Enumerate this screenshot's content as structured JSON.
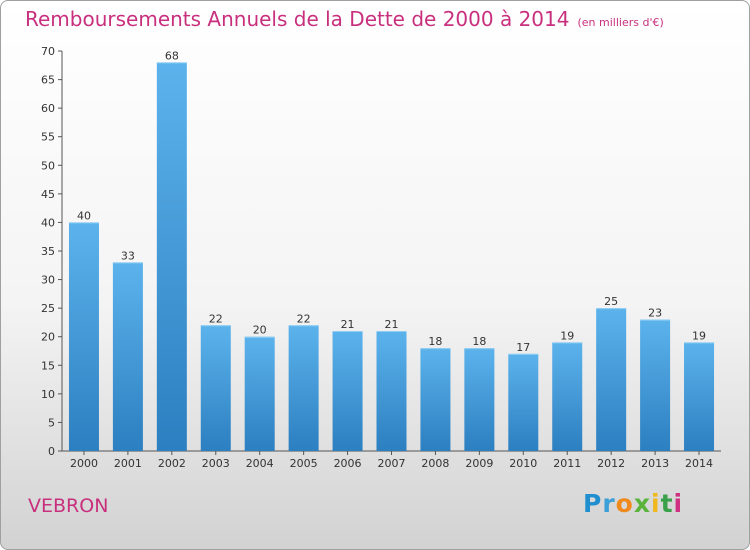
{
  "commune": "VEBRON",
  "logo_letters": [
    "P",
    "r",
    "o",
    "x",
    "i",
    "t",
    "i"
  ],
  "colors": {
    "title": "#c8307e",
    "bar_light": "#5cb3ec",
    "bar_dark": "#2c7fc0",
    "axis": "#555555",
    "grid": "#d8d8d8"
  },
  "chart_data": {
    "type": "bar",
    "title": "Remboursements Annuels de la Dette de 2000 à 2014",
    "unit": "(en milliers d'€)",
    "categories": [
      "2000",
      "2001",
      "2002",
      "2003",
      "2004",
      "2005",
      "2006",
      "2007",
      "2008",
      "2009",
      "2010",
      "2011",
      "2012",
      "2013",
      "2014"
    ],
    "values": [
      40,
      33,
      68,
      22,
      20,
      22,
      21,
      21,
      18,
      18,
      17,
      19,
      25,
      23,
      19
    ],
    "xlabel": "",
    "ylabel": "",
    "ylim": [
      0,
      70
    ],
    "yticks": [
      0,
      5,
      10,
      15,
      20,
      25,
      30,
      35,
      40,
      45,
      50,
      55,
      60,
      65,
      70
    ],
    "grid": false
  }
}
